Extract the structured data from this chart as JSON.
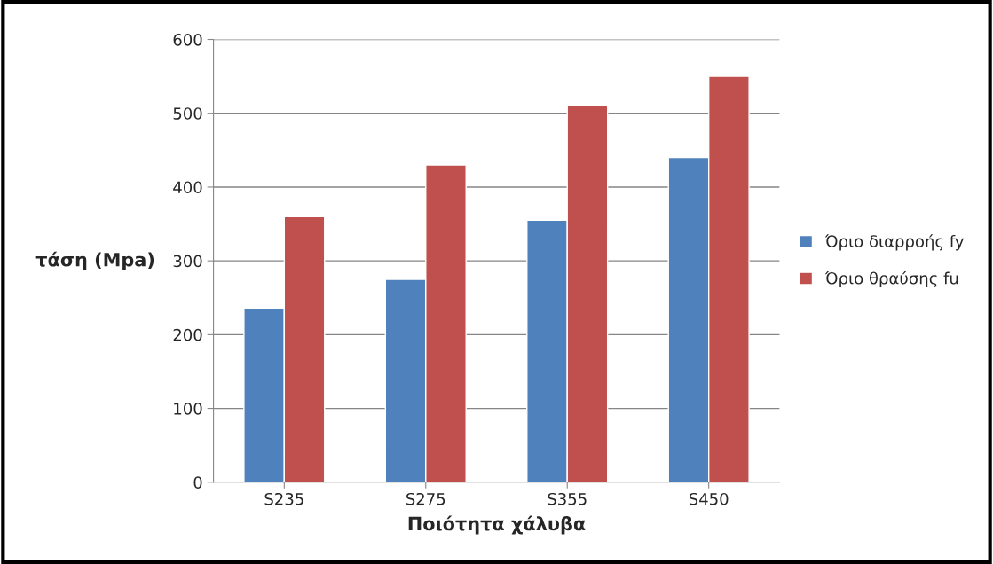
{
  "chart_data": {
    "type": "bar",
    "xlabel": "Ποιότητα χάλυβα",
    "ylabel": "τάση (Mpa)",
    "categories": [
      "S235",
      "S275",
      "S355",
      "S450"
    ],
    "series": [
      {
        "name": "Όριο διαρροής fy",
        "color": "#4f81bd",
        "values": [
          235,
          275,
          355,
          440
        ]
      },
      {
        "name": "Όριο θραύσης fu",
        "color": "#c0504d",
        "values": [
          360,
          430,
          510,
          550
        ]
      }
    ],
    "ylim": [
      0,
      600
    ],
    "yticks": [
      0,
      100,
      200,
      300,
      400,
      500,
      600
    ],
    "grid": "y",
    "legend": "right"
  }
}
